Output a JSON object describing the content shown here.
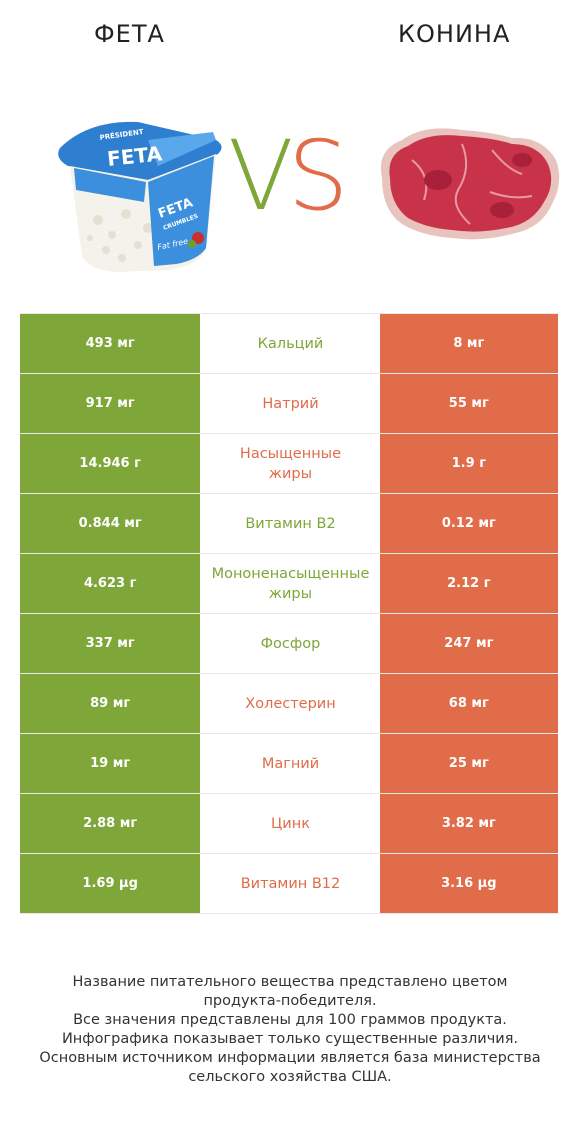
{
  "header": {
    "left_title": "ФЕТА",
    "right_title": "КОНИНА",
    "vs_v": "V",
    "vs_s": "S"
  },
  "colors": {
    "green": "#7ea638",
    "red": "#e06c4a"
  },
  "images": {
    "left": "feta-crumbles-container",
    "right": "raw-horse-meat"
  },
  "rows": [
    {
      "left": "493 мг",
      "name": "Кальций",
      "right": "8 мг",
      "winner": "green"
    },
    {
      "left": "917 мг",
      "name": "Натрий",
      "right": "55 мг",
      "winner": "red"
    },
    {
      "left": "14.946 г",
      "name_lines": [
        "Насыщенные",
        "жиры"
      ],
      "right": "1.9 г",
      "winner": "red"
    },
    {
      "left": "0.844 мг",
      "name": "Витамин B2",
      "right": "0.12 мг",
      "winner": "green"
    },
    {
      "left": "4.623 г",
      "name_lines": [
        "Мононенасыщенные",
        "жиры"
      ],
      "right": "2.12 г",
      "winner": "green"
    },
    {
      "left": "337 мг",
      "name": "Фосфор",
      "right": "247 мг",
      "winner": "green"
    },
    {
      "left": "89 мг",
      "name": "Холестерин",
      "right": "68 мг",
      "winner": "red"
    },
    {
      "left": "19 мг",
      "name": "Магний",
      "right": "25 мг",
      "winner": "red"
    },
    {
      "left": "2.88 мг",
      "name": "Цинк",
      "right": "3.82 мг",
      "winner": "red"
    },
    {
      "left": "1.69 µg",
      "name": "Витамин B12",
      "right": "3.16 µg",
      "winner": "red"
    }
  ],
  "footer": {
    "line1": "Название питательного вещества представлено цветом",
    "line2": "продукта-победителя.",
    "line3": "Все значения представлены для 100 граммов продукта.",
    "line4": "Инфографика показывает только существенные различия.",
    "line5": "Основным источником информации является база министерства",
    "line6": "сельского хозяйства США."
  },
  "feta_label": {
    "brand": "PRÉSIDENT",
    "product": "FETA",
    "sub": "CRUMBLES",
    "tag": "Fat free"
  }
}
